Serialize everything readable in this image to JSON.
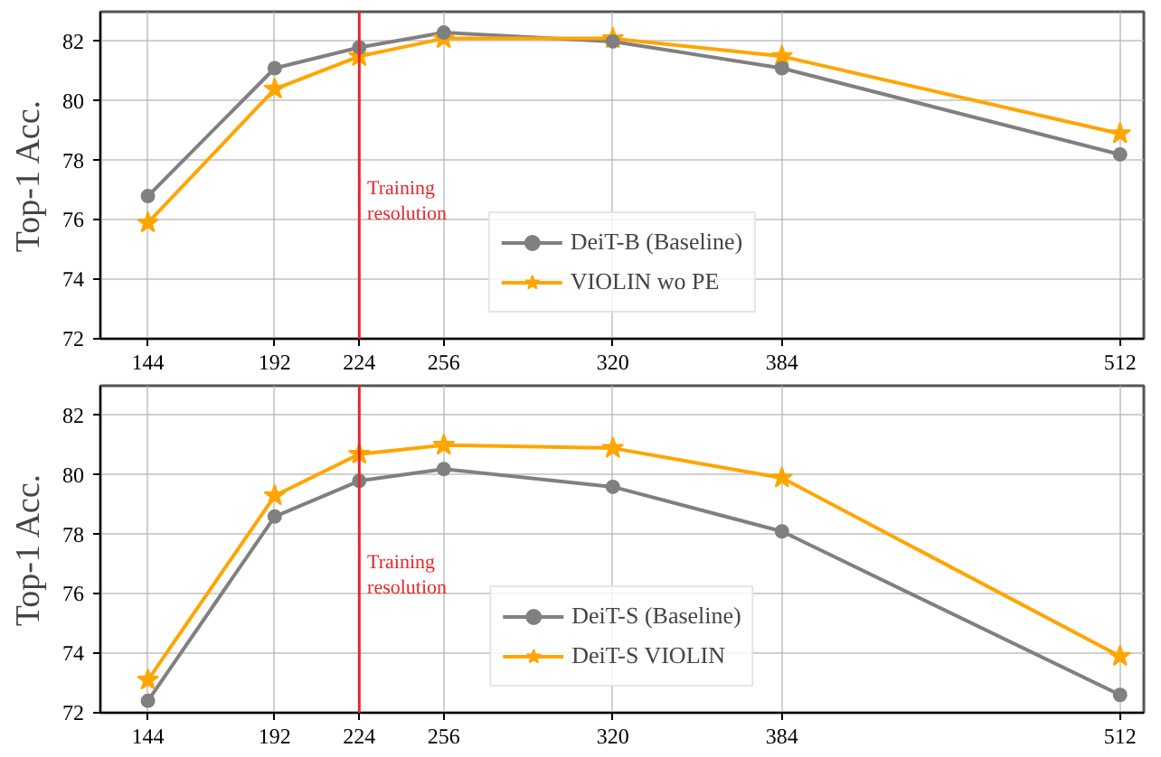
{
  "chart_data": [
    {
      "type": "line",
      "ylabel": "Top-1 Acc.",
      "x": [
        144,
        192,
        224,
        256,
        320,
        384,
        512
      ],
      "xlim": [
        126,
        521
      ],
      "xticks": [
        144,
        192,
        224,
        256,
        320,
        384,
        512
      ],
      "ylim": [
        72,
        83
      ],
      "yticks": [
        72,
        74,
        76,
        78,
        80,
        82
      ],
      "grid": true,
      "legend": "bottom",
      "series": [
        {
          "name": "DeiT-B (Baseline)",
          "color": "#808080",
          "marker": "circle",
          "values": [
            76.8,
            81.1,
            81.8,
            82.3,
            82.0,
            81.1,
            78.2
          ]
        },
        {
          "name": "VIOLIN wo PE",
          "color": "#ffa500",
          "marker": "star",
          "values": [
            75.9,
            80.4,
            81.5,
            82.1,
            82.1,
            81.5,
            78.9
          ]
        }
      ],
      "ref_lines": [
        {
          "axis": "x",
          "value": 224,
          "label": "Training\nresolution",
          "color": "#e8262a"
        }
      ]
    },
    {
      "type": "line",
      "ylabel": "Top-1 Acc.",
      "x": [
        144,
        192,
        224,
        256,
        320,
        384,
        512
      ],
      "xlim": [
        126,
        521
      ],
      "xticks": [
        144,
        192,
        224,
        256,
        320,
        384,
        512
      ],
      "ylim": [
        72,
        83
      ],
      "yticks": [
        72,
        74,
        76,
        78,
        80,
        82
      ],
      "grid": true,
      "legend": "bottom",
      "series": [
        {
          "name": "DeiT-S (Baseline)",
          "color": "#808080",
          "marker": "circle",
          "values": [
            72.4,
            78.6,
            79.8,
            80.2,
            79.6,
            78.1,
            72.6
          ]
        },
        {
          "name": "DeiT-S VIOLIN",
          "color": "#ffa500",
          "marker": "star",
          "values": [
            73.1,
            79.3,
            80.7,
            81.0,
            80.9,
            79.9,
            73.9
          ]
        }
      ],
      "ref_lines": [
        {
          "axis": "x",
          "value": 224,
          "label": "Training\nresolution",
          "color": "#e8262a"
        }
      ]
    }
  ]
}
